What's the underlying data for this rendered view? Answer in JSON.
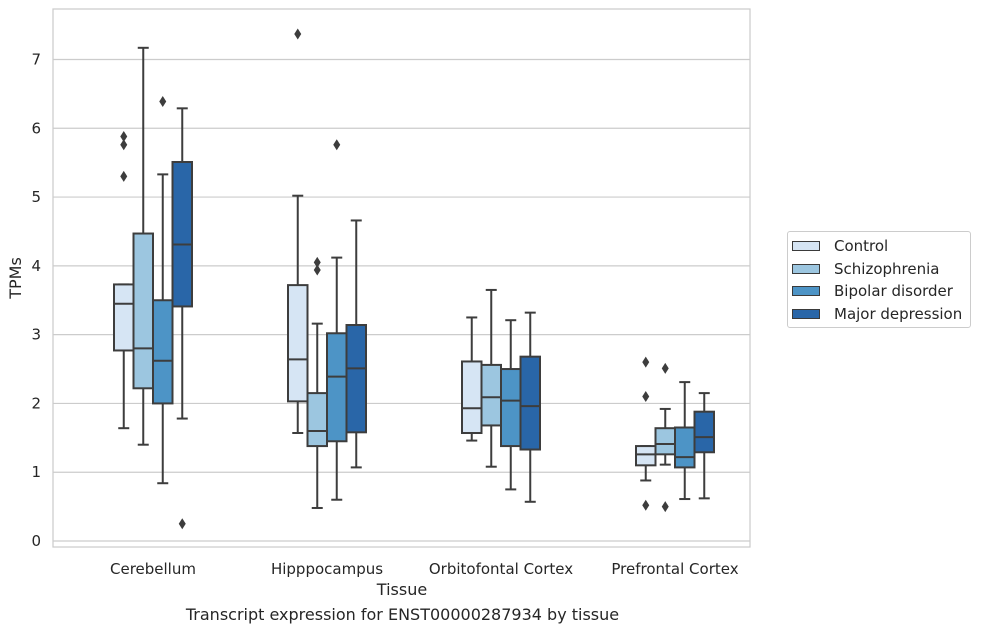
{
  "chart_data": {
    "type": "box",
    "title": "",
    "caption": "Transcript expression for ENST00000287934 by tissue",
    "xlabel": "Tissue",
    "ylabel": "TPMs",
    "ylim": [
      -0.1,
      7.75
    ],
    "yticks": [
      0,
      1,
      2,
      3,
      4,
      5,
      6,
      7
    ],
    "grid": "horizontal",
    "legend_position": "right",
    "categories": [
      "Cerebellum",
      "Hipppocampus",
      "Orbitofontal Cortex",
      "Prefrontal Cortex"
    ],
    "series": [
      {
        "name": "Control",
        "color": "#d6e5f4",
        "boxes": [
          {
            "whisker_low": 1.64,
            "q1": 2.77,
            "median": 3.45,
            "q3": 3.73,
            "whisker_high": 3.73,
            "outliers": [
              5.3,
              5.76,
              5.88
            ]
          },
          {
            "whisker_low": 1.57,
            "q1": 2.03,
            "median": 2.64,
            "q3": 3.72,
            "whisker_high": 5.02,
            "outliers": [
              7.37
            ]
          },
          {
            "whisker_low": 1.46,
            "q1": 1.57,
            "median": 1.93,
            "q3": 2.61,
            "whisker_high": 3.25,
            "outliers": []
          },
          {
            "whisker_low": 0.88,
            "q1": 1.1,
            "median": 1.26,
            "q3": 1.38,
            "whisker_high": 1.38,
            "outliers": [
              0.52,
              2.1,
              2.6
            ]
          }
        ]
      },
      {
        "name": "Schizophrenia",
        "color": "#9cc6e0",
        "boxes": [
          {
            "whisker_low": 1.4,
            "q1": 2.22,
            "median": 2.8,
            "q3": 4.47,
            "whisker_high": 7.17,
            "outliers": []
          },
          {
            "whisker_low": 0.48,
            "q1": 1.38,
            "median": 1.6,
            "q3": 2.15,
            "whisker_high": 3.16,
            "outliers": [
              3.94,
              4.05
            ]
          },
          {
            "whisker_low": 1.08,
            "q1": 1.68,
            "median": 2.09,
            "q3": 2.56,
            "whisker_high": 3.65,
            "outliers": []
          },
          {
            "whisker_low": 1.11,
            "q1": 1.26,
            "median": 1.41,
            "q3": 1.64,
            "whisker_high": 1.92,
            "outliers": [
              0.5,
              2.51
            ]
          }
        ]
      },
      {
        "name": "Bipolar disorder",
        "color": "#4d94c6",
        "boxes": [
          {
            "whisker_low": 0.84,
            "q1": 2.0,
            "median": 2.62,
            "q3": 3.5,
            "whisker_high": 5.33,
            "outliers": [
              6.39
            ]
          },
          {
            "whisker_low": 0.6,
            "q1": 1.45,
            "median": 2.39,
            "q3": 3.02,
            "whisker_high": 4.12,
            "outliers": [
              5.76
            ]
          },
          {
            "whisker_low": 0.75,
            "q1": 1.38,
            "median": 2.04,
            "q3": 2.5,
            "whisker_high": 3.21,
            "outliers": []
          },
          {
            "whisker_low": 0.61,
            "q1": 1.07,
            "median": 1.22,
            "q3": 1.65,
            "whisker_high": 2.31,
            "outliers": []
          }
        ]
      },
      {
        "name": "Major depression",
        "color": "#2966a8",
        "boxes": [
          {
            "whisker_low": 1.78,
            "q1": 3.41,
            "median": 4.31,
            "q3": 5.51,
            "whisker_high": 6.29,
            "outliers": [
              0.25
            ]
          },
          {
            "whisker_low": 1.07,
            "q1": 1.58,
            "median": 2.51,
            "q3": 3.14,
            "whisker_high": 4.66,
            "outliers": []
          },
          {
            "whisker_low": 0.57,
            "q1": 1.33,
            "median": 1.96,
            "q3": 2.68,
            "whisker_high": 3.32,
            "outliers": []
          },
          {
            "whisker_low": 0.62,
            "q1": 1.29,
            "median": 1.51,
            "q3": 1.88,
            "whisker_high": 2.15,
            "outliers": []
          }
        ]
      }
    ]
  }
}
